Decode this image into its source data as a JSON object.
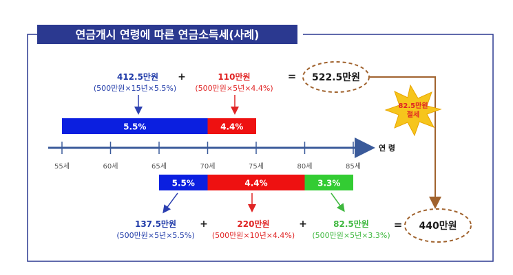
{
  "title": "연금개시 연령에 따른 연금소득세(사례)",
  "axis": {
    "label": "연 령",
    "ticks": [
      "55세",
      "60세",
      "65세",
      "70세",
      "75세",
      "80세",
      "85세"
    ]
  },
  "top_case": {
    "bars": [
      {
        "label": "5.5%",
        "color": "#0b1fe0",
        "from_age": 55,
        "to_age": 70
      },
      {
        "label": "4.4%",
        "color": "#ee1111",
        "from_age": 70,
        "to_age": 75
      }
    ],
    "terms": [
      {
        "amount": "412.5만원",
        "formula": "(500만원×15년×5.5%)",
        "color": "#1f3aa8"
      },
      {
        "amount": "110만원",
        "formula": "(500만원×5년×4.4%)",
        "color": "#e02424"
      }
    ],
    "plus": "+",
    "equals": "=",
    "total": "522.5만원"
  },
  "saving": {
    "amount": "82.5만원",
    "label": "절세"
  },
  "bottom_case": {
    "bars": [
      {
        "label": "5.5%",
        "color": "#0b1fe0",
        "from_age": 65,
        "to_age": 70
      },
      {
        "label": "4.4%",
        "color": "#ee1111",
        "from_age": 70,
        "to_age": 80
      },
      {
        "label": "3.3%",
        "color": "#33cc33",
        "from_age": 80,
        "to_age": 85
      }
    ],
    "terms": [
      {
        "amount": "137.5만원",
        "formula": "(500만원×5년×5.5%)",
        "color": "#1f3aa8"
      },
      {
        "amount": "220만원",
        "formula": "(500만원×10년×4.4%)",
        "color": "#e02424"
      },
      {
        "amount": "82.5만원",
        "formula": "(500만원×5년×3.3%)",
        "color": "#3fb83f"
      }
    ],
    "plus_1": "+",
    "plus_2": "+",
    "equals": "=",
    "total": "440만원"
  },
  "colors": {
    "frame": "#2b3990",
    "axis": "#3a5a9a",
    "dashed_circle": "#a0622d",
    "connector": "#a0622d",
    "burst": "#f6c51c",
    "burst_text": "#e02424"
  }
}
